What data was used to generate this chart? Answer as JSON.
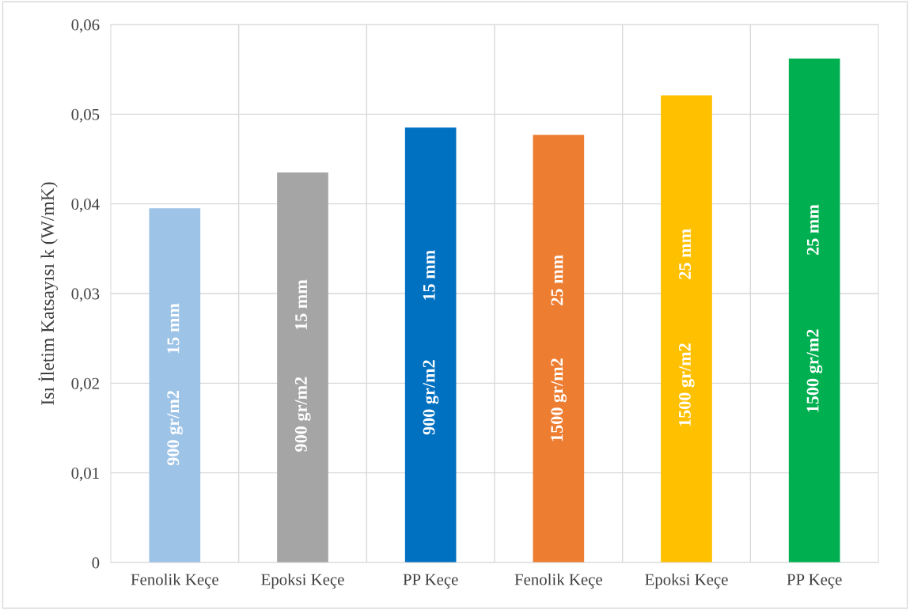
{
  "chart_data": {
    "type": "bar",
    "ylabel": "Isı İletim Katsayısı k (W/mK)",
    "categories": [
      "Fenolik Keçe",
      "Epoksi Keçe",
      "PP Keçe",
      "Fenolik Keçe",
      "Epoksi Keçe",
      "PP Keçe"
    ],
    "values": [
      0.0395,
      0.0435,
      0.0485,
      0.0477,
      0.0521,
      0.0562
    ],
    "colors": [
      "#9dc3e6",
      "#a5a5a5",
      "#0070c0",
      "#ed7d31",
      "#ffc000",
      "#00b050"
    ],
    "ylim": [
      0,
      0.06
    ],
    "yticks": [
      {
        "value": 0,
        "label": "0"
      },
      {
        "value": 0.01,
        "label": "0,01"
      },
      {
        "value": 0.02,
        "label": "0,02"
      },
      {
        "value": 0.03,
        "label": "0,03"
      },
      {
        "value": 0.04,
        "label": "0,04"
      },
      {
        "value": 0.05,
        "label": "0,05"
      },
      {
        "value": 0.06,
        "label": "0,06"
      }
    ],
    "grid": true,
    "annotations": [
      "900 gr/m2",
      "15 mm",
      "900 gr/m2",
      "15 mm",
      "900 gr/m2",
      "15 mm",
      "1500 gr/m2",
      "25 mm",
      "1500 gr/m2",
      "25 mm",
      "1500 gr/m2",
      "25 mm"
    ]
  }
}
